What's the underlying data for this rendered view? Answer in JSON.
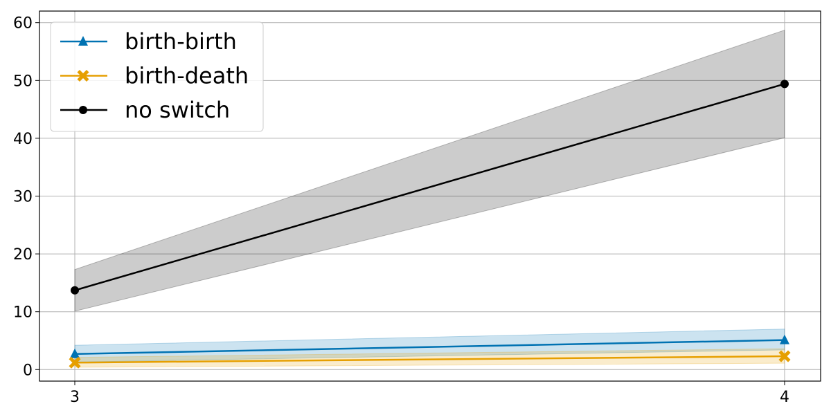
{
  "chart_data": {
    "type": "line",
    "x": [
      3,
      4
    ],
    "xticks": [
      "3",
      "4"
    ],
    "ylim": [
      -2,
      62
    ],
    "yticks": [
      0,
      10,
      20,
      30,
      40,
      50,
      60
    ],
    "grid": true,
    "legend_position": "top-left",
    "series": [
      {
        "name": "birth-birth",
        "values": [
          2.7,
          5.1
        ],
        "lower": [
          1.3,
          3.4
        ],
        "upper": [
          4.2,
          7.0
        ],
        "color": "#0072b2",
        "marker": "triangle"
      },
      {
        "name": "birth-death",
        "values": [
          1.2,
          2.3
        ],
        "lower": [
          0.4,
          1.1
        ],
        "upper": [
          2.1,
          3.6
        ],
        "color": "#e69f00",
        "marker": "x"
      },
      {
        "name": "no switch",
        "values": [
          13.7,
          49.4
        ],
        "lower": [
          10.1,
          40.1
        ],
        "upper": [
          17.3,
          58.7
        ],
        "color": "#000000",
        "marker": "circle"
      }
    ]
  }
}
